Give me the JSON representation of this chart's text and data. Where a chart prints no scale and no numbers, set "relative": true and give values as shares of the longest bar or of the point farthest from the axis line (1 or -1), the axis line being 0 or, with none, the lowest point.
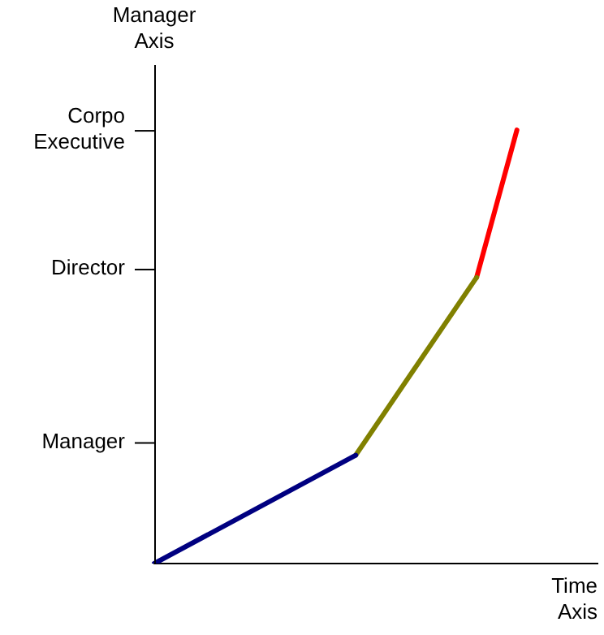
{
  "chart_data": {
    "type": "line",
    "xlabel": "Time Axis",
    "relative": true,
    "categories": [
      null,
      null,
      null,
      null,
      null,
      null,
      null,
      null,
      null,
      null,
      null,
      null
    ],
    "annotations": [
      "Manager Axis",
      "Manager",
      "Director",
      "Corpo Executive"
    ],
    "grid": false,
    "legend": false,
    "marker": "none",
    "line_style": "solid",
    "series": [
      {
        "color": "#000080",
        "values": [
          0,
          null,
          null,
          null,
          null,
          0.25,
          null,
          null,
          null,
          null,
          null,
          null
        ]
      },
      {
        "color": "#808000",
        "values": [
          null,
          null,
          null,
          null,
          null,
          0.25,
          null,
          null,
          0.66,
          null,
          null,
          null
        ]
      },
      {
        "color": "#ff0000",
        "values": [
          null,
          null,
          null,
          null,
          null,
          null,
          null,
          null,
          0.66,
          1,
          null,
          null
        ]
      }
    ]
  }
}
